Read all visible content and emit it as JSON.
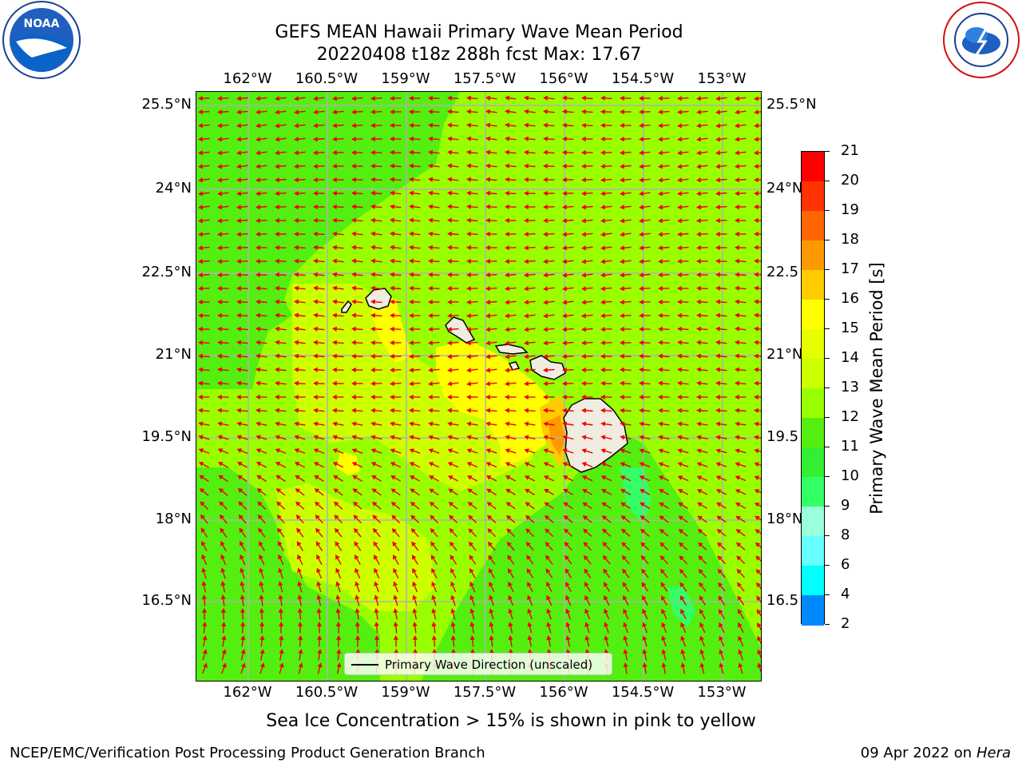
{
  "title_line1": "GEFS MEAN Hawaii Primary Wave Mean Period",
  "title_line2": "20220408 t18z 288h fcst   Max: 17.67",
  "logos": {
    "left": "noaa-logo",
    "right": "national-weather-service-logo"
  },
  "lon_labels": [
    "162°W",
    "160.5°W",
    "159°W",
    "157.5°W",
    "156°W",
    "154.5°W",
    "153°W"
  ],
  "lat_labels": [
    "25.5°N",
    "24°N",
    "22.5°N",
    "21°N",
    "19.5°N",
    "18°N",
    "16.5°N"
  ],
  "lat_labels_right": [
    "25.5°N",
    "24°N",
    "22.5",
    "21°N",
    "19.5",
    "18°N",
    "16.5"
  ],
  "legend": {
    "label": "Primary Wave Direction (unscaled)",
    "line_color": "#000000"
  },
  "colorbar": {
    "label": "Primary Wave Mean Period [s]",
    "ticks": [
      "21",
      "20",
      "19",
      "18",
      "17",
      "16",
      "15",
      "14",
      "13",
      "12",
      "11",
      "10",
      "9",
      "8",
      "6",
      "4",
      "2"
    ],
    "colors": [
      "#ff0000",
      "#ff3300",
      "#ff6600",
      "#ff9900",
      "#ffcc00",
      "#ffff00",
      "#e5ff00",
      "#ccff00",
      "#99ff00",
      "#55ee11",
      "#33ee33",
      "#33ff66",
      "#99ffdd",
      "#66ffff",
      "#00ffff",
      "#0088ff",
      "#0000ff"
    ]
  },
  "map_colors": {
    "green_13": "#99ff00",
    "green_12": "#55ee11",
    "lime_14": "#ccff00",
    "yellow_15": "#ffff00",
    "orange_17": "#ffcc00",
    "deep_orange": "#ff9900",
    "teal_10": "#33ff66",
    "land": "#f0ecdf",
    "vector": "#ee0000",
    "grid": "#b0b0b0"
  },
  "note": "Sea Ice Concentration > 15% is shown in pink to yellow",
  "footer_left": "NCEP/EMC/Verification Post Processing Product Generation Branch",
  "footer_right_prefix": "09 Apr 2022 on ",
  "footer_right_host": "Hera"
}
